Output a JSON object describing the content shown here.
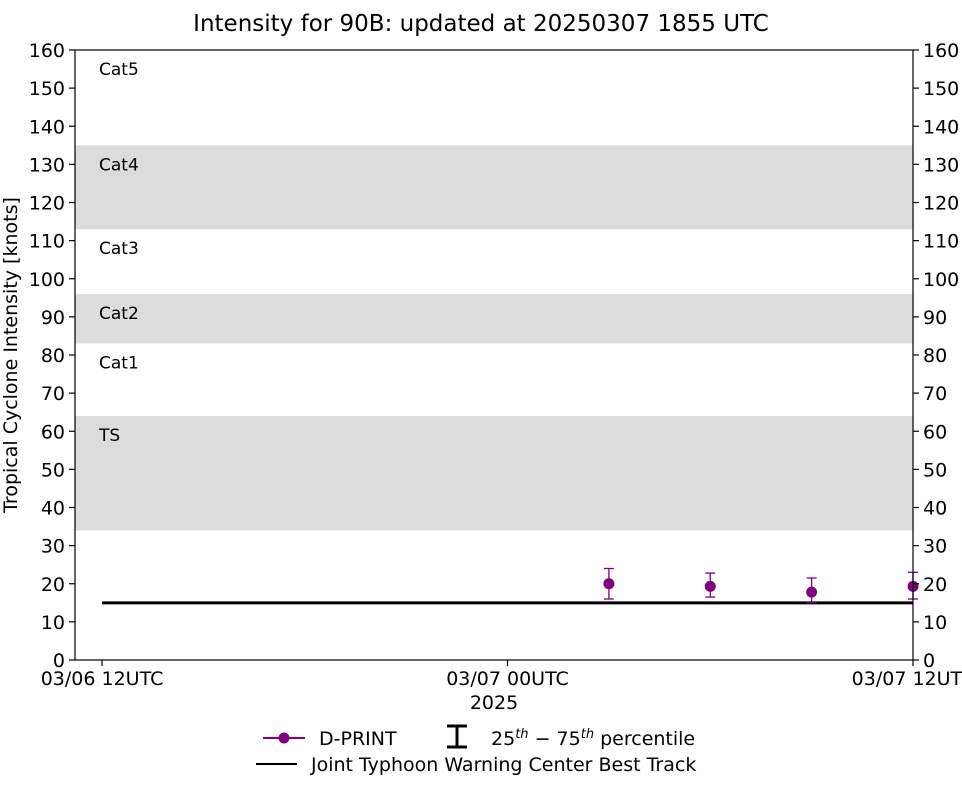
{
  "chart_data": {
    "type": "scatter",
    "title": "Intensity for 90B: updated at 20250307 1855 UTC",
    "ylabel": "Tropical Cyclone Intensity [knots]",
    "xlabel": "2025",
    "ylim": [
      0,
      160
    ],
    "y_ticks": [
      0,
      10,
      20,
      30,
      40,
      50,
      60,
      70,
      80,
      90,
      100,
      110,
      120,
      130,
      140,
      150,
      160
    ],
    "x_range_hours": [
      -2.0,
      60.0
    ],
    "x_ticks": [
      {
        "hour": 0,
        "label": "03/06 12UTC"
      },
      {
        "hour": 30,
        "label": "03/07 00UTC"
      },
      {
        "hour": 60,
        "label": "03/07 12UTC"
      }
    ],
    "bands": [
      {
        "label": "TS",
        "from": 34,
        "to": 64,
        "shaded": true
      },
      {
        "label": "Cat1",
        "from": 64,
        "to": 83,
        "shaded": false
      },
      {
        "label": "Cat2",
        "from": 83,
        "to": 96,
        "shaded": true
      },
      {
        "label": "Cat3",
        "from": 96,
        "to": 113,
        "shaded": false
      },
      {
        "label": "Cat4",
        "from": 113,
        "to": 135,
        "shaded": true
      },
      {
        "label": "Cat5",
        "from": 135,
        "to": 160,
        "shaded": false
      }
    ],
    "band_color": "#dcdcdc",
    "series": [
      {
        "name": "D-PRINT",
        "color": "#800080",
        "points": [
          {
            "x": 37.5,
            "y": 20.0,
            "p25": 16.0,
            "p75": 24.0
          },
          {
            "x": 45.0,
            "y": 19.3,
            "p25": 16.5,
            "p75": 22.8
          },
          {
            "x": 52.5,
            "y": 17.8,
            "p25": 15.0,
            "p75": 21.5
          },
          {
            "x": 60.0,
            "y": 19.3,
            "p25": 16.0,
            "p75": 23.0
          }
        ]
      },
      {
        "name": "Joint Typhoon Warning Center Best Track",
        "color": "#000000",
        "points": [
          {
            "x": 0,
            "y": 15
          },
          {
            "x": 60,
            "y": 15
          }
        ]
      }
    ],
    "legend": {
      "dprint": "D-PRINT",
      "percentile": "25th - 75th percentile",
      "best_track": "Joint Typhoon Warning Center Best Track"
    }
  }
}
